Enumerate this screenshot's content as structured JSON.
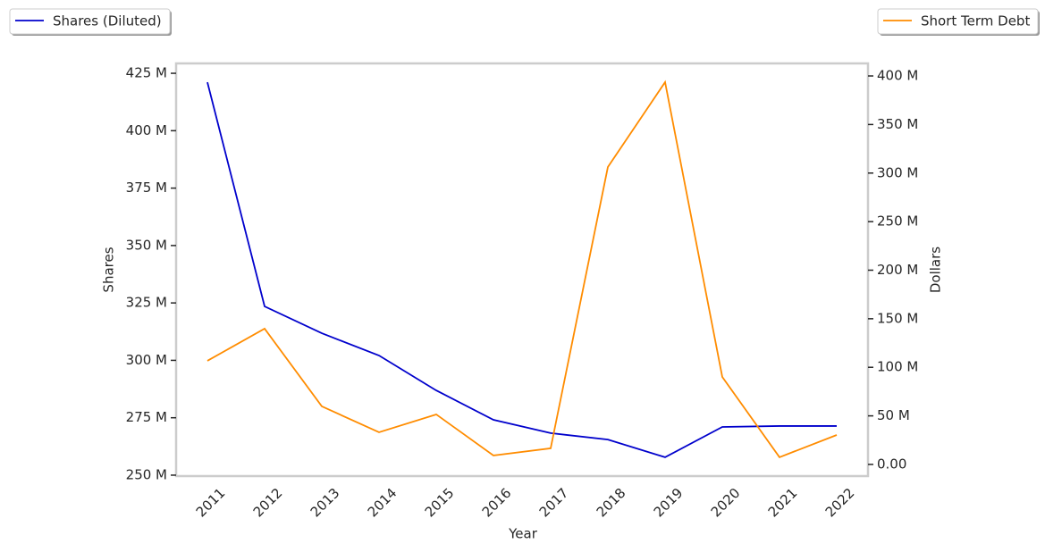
{
  "chart_data": {
    "type": "line",
    "x_label": "Year",
    "y_label": "Shares",
    "y2_label": "Dollars",
    "categories": [
      "2011",
      "2012",
      "2013",
      "2014",
      "2015",
      "2016",
      "2017",
      "2018",
      "2019",
      "2020",
      "2021",
      "2022"
    ],
    "series": [
      {
        "name": "Shares (Diluted)",
        "color": "#0000cc",
        "legend": "upper left",
        "values": [
          421.1,
          323.5,
          311.8,
          302.1,
          286.9,
          274.1,
          268.3,
          265.5,
          257.8,
          271.0,
          271.4,
          271.4
        ]
      },
      {
        "name": "Short Term Debt",
        "color": "#ff8c00",
        "axis": "y2",
        "legend": "upper right",
        "values": [
          106.7,
          139.8,
          59.8,
          33.1,
          51.5,
          9.2,
          16.6,
          306.2,
          393.6,
          90.1,
          7.4,
          30.3
        ]
      }
    ],
    "ylim": [
      249.6,
      429.3
    ],
    "yticks": [
      {
        "value": 250,
        "label": "250 M"
      },
      {
        "value": 275,
        "label": "275 M"
      },
      {
        "value": 300,
        "label": "300 M"
      },
      {
        "value": 325,
        "label": "325 M"
      },
      {
        "value": 350,
        "label": "350 M"
      },
      {
        "value": 375,
        "label": "375 M"
      },
      {
        "value": 400,
        "label": "400 M"
      },
      {
        "value": 425,
        "label": "425 M"
      }
    ],
    "y2lim": [
      -12,
      412.9
    ],
    "y2ticks": [
      {
        "value": 0,
        "label": "0.00"
      },
      {
        "value": 50,
        "label": "50 M"
      },
      {
        "value": 100,
        "label": "100 M"
      },
      {
        "value": 150,
        "label": "150 M"
      },
      {
        "value": 200,
        "label": "200 M"
      },
      {
        "value": 250,
        "label": "250 M"
      },
      {
        "value": 300,
        "label": "300 M"
      },
      {
        "value": 350,
        "label": "350 M"
      },
      {
        "value": 400,
        "label": "400 M"
      }
    ],
    "grid": false
  }
}
